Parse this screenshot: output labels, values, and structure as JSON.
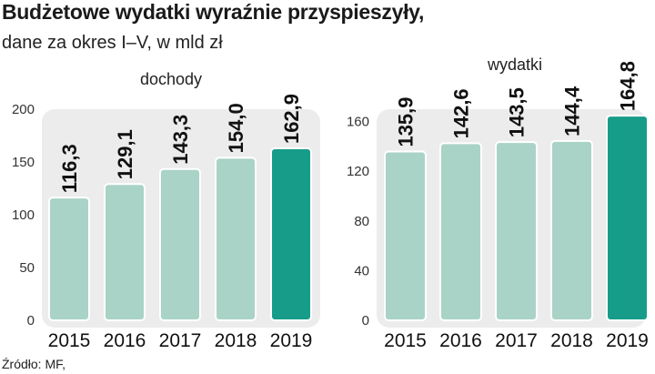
{
  "header": {
    "title": "Budżetowe wydatki wyraźnie przyspieszyły,",
    "subtitle": "dane za okres I–V, w mld zł"
  },
  "footer": {
    "source": "Źródło: MF,"
  },
  "colors": {
    "bar": "#a9d3c6",
    "bar_highlight": "#179c8a",
    "panel": "#ececec",
    "bar_stroke": "#ffffff"
  },
  "chart_data": [
    {
      "type": "bar",
      "title": "dochody",
      "categories": [
        "2015",
        "2016",
        "2017",
        "2018",
        "2019"
      ],
      "values": [
        116.3,
        129.1,
        143.3,
        154.0,
        162.9
      ],
      "value_labels": [
        "116,3",
        "129,1",
        "143,3",
        "154,0",
        "162,9"
      ],
      "highlight_index": 4,
      "ylim": [
        0,
        200
      ],
      "yticks": [
        0,
        50,
        100,
        150,
        200
      ],
      "grid": false
    },
    {
      "type": "bar",
      "title": "wydatki",
      "categories": [
        "2015",
        "2016",
        "2017",
        "2018",
        "2019"
      ],
      "values": [
        135.9,
        142.6,
        143.5,
        144.4,
        164.8
      ],
      "value_labels": [
        "135,9",
        "142,6",
        "143,5",
        "144,4",
        "164,8"
      ],
      "highlight_index": 4,
      "ylim": [
        0,
        170
      ],
      "yticks": [
        0,
        40,
        80,
        120,
        160
      ],
      "grid": false
    }
  ]
}
